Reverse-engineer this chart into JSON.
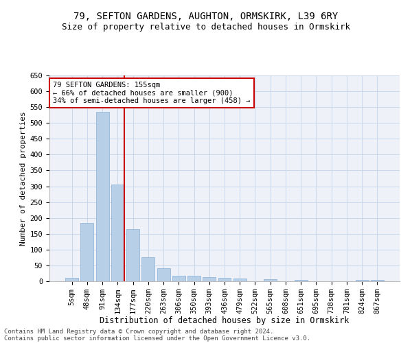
{
  "title1": "79, SEFTON GARDENS, AUGHTON, ORMSKIRK, L39 6RY",
  "title2": "Size of property relative to detached houses in Ormskirk",
  "xlabel": "Distribution of detached houses by size in Ormskirk",
  "ylabel": "Number of detached properties",
  "categories": [
    "5sqm",
    "48sqm",
    "91sqm",
    "134sqm",
    "177sqm",
    "220sqm",
    "263sqm",
    "306sqm",
    "350sqm",
    "393sqm",
    "436sqm",
    "479sqm",
    "522sqm",
    "565sqm",
    "608sqm",
    "651sqm",
    "695sqm",
    "738sqm",
    "781sqm",
    "824sqm",
    "867sqm"
  ],
  "values": [
    10,
    185,
    535,
    305,
    165,
    75,
    42,
    17,
    18,
    12,
    10,
    8,
    0,
    7,
    0,
    5,
    0,
    0,
    0,
    5,
    5
  ],
  "bar_color": "#b8cfe8",
  "bar_edgecolor": "#8ab0d8",
  "grid_color": "#c8d8ea",
  "background_color": "#eef2f8",
  "vline_x": 3.42,
  "vline_color": "#cc0000",
  "annotation_text": "79 SEFTON GARDENS: 155sqm\n← 66% of detached houses are smaller (900)\n34% of semi-detached houses are larger (458) →",
  "footer1": "Contains HM Land Registry data © Crown copyright and database right 2024.",
  "footer2": "Contains public sector information licensed under the Open Government Licence v3.0.",
  "ylim": [
    0,
    650
  ],
  "yticks": [
    0,
    50,
    100,
    150,
    200,
    250,
    300,
    350,
    400,
    450,
    500,
    550,
    600,
    650
  ],
  "title1_fontsize": 10,
  "title2_fontsize": 9,
  "xlabel_fontsize": 8.5,
  "ylabel_fontsize": 8,
  "tick_fontsize": 7.5,
  "annot_fontsize": 7.5,
  "footer_fontsize": 6.5
}
